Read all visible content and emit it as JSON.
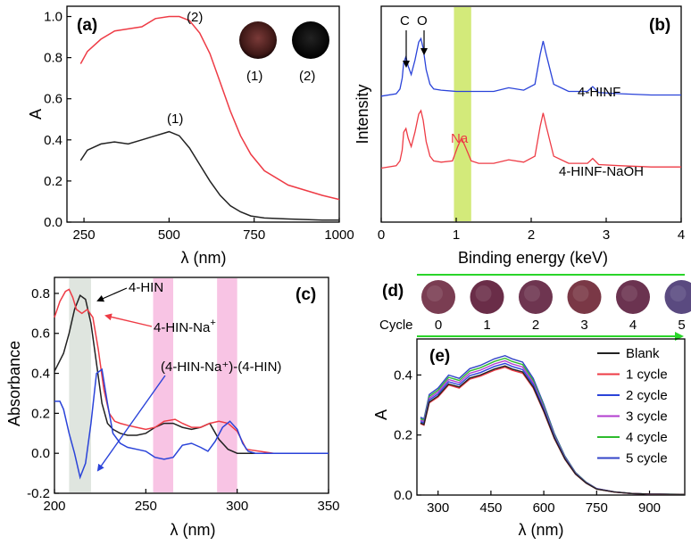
{
  "colors": {
    "black": "#222222",
    "red": "#ee3b45",
    "blue": "#2a43d9",
    "magenta": "#b23ccf",
    "green": "#2dbb2d",
    "navy": "#3344c8",
    "band_gray": "#dfe5df",
    "band_pink": "#f8c4e4",
    "band_yellow": "#d3ea7a",
    "arrow_green": "#2ad52a"
  },
  "chart_data": [
    {
      "panel": "(a)",
      "type": "line",
      "xlabel": "λ (nm)",
      "ylabel": "A",
      "xlim": [
        200,
        1000
      ],
      "ylim": [
        0,
        1.05
      ],
      "xticks": [
        "250",
        "500",
        "750",
        "1000"
      ],
      "yticks": [
        "0.0",
        "0.2",
        "0.4",
        "0.6",
        "0.8",
        "1.0"
      ],
      "curve_labels": [
        "(2)",
        "(1)"
      ],
      "inset_labels": [
        "(1)",
        "(2)"
      ],
      "series": [
        {
          "label": "(1)",
          "color": "#222222",
          "x": [
            240,
            260,
            300,
            340,
            380,
            420,
            460,
            500,
            530,
            560,
            590,
            620,
            650,
            680,
            710,
            740,
            780,
            850,
            950,
            1000
          ],
          "y": [
            0.3,
            0.35,
            0.38,
            0.39,
            0.38,
            0.4,
            0.42,
            0.44,
            0.42,
            0.36,
            0.28,
            0.2,
            0.13,
            0.08,
            0.05,
            0.03,
            0.02,
            0.015,
            0.01,
            0.01
          ]
        },
        {
          "label": "(2)",
          "color": "#ee3b45",
          "x": [
            240,
            260,
            300,
            340,
            380,
            420,
            460,
            500,
            530,
            560,
            590,
            620,
            650,
            680,
            710,
            740,
            780,
            850,
            950,
            1000
          ],
          "y": [
            0.77,
            0.83,
            0.89,
            0.93,
            0.94,
            0.95,
            0.99,
            1.0,
            1.0,
            0.98,
            0.92,
            0.82,
            0.68,
            0.54,
            0.42,
            0.33,
            0.25,
            0.18,
            0.13,
            0.11
          ]
        }
      ]
    },
    {
      "panel": "(b)",
      "type": "line",
      "xlabel": "Binding energy (keV)",
      "ylabel": "Intensity",
      "xlim": [
        0,
        4
      ],
      "xticks": [
        "0",
        "1",
        "2",
        "3",
        "4"
      ],
      "highlight_band": [
        0.97,
        1.2
      ],
      "peak_labels": [
        "C",
        "O",
        "Na"
      ],
      "series": [
        {
          "name": "4-HINF",
          "color": "#2a43d9",
          "offset": 0.6,
          "x": [
            0.0,
            0.2,
            0.25,
            0.28,
            0.3,
            0.33,
            0.36,
            0.4,
            0.45,
            0.5,
            0.53,
            0.56,
            0.6,
            0.65,
            0.7,
            0.8,
            1.0,
            1.2,
            1.5,
            1.7,
            1.9,
            2.05,
            2.12,
            2.16,
            2.2,
            2.3,
            2.5,
            2.75,
            2.82,
            2.9,
            3.2,
            3.6,
            4.0
          ],
          "y": [
            0.0,
            0.02,
            0.06,
            0.15,
            0.28,
            0.33,
            0.25,
            0.18,
            0.3,
            0.45,
            0.48,
            0.4,
            0.22,
            0.1,
            0.06,
            0.05,
            0.04,
            0.04,
            0.04,
            0.07,
            0.05,
            0.1,
            0.35,
            0.46,
            0.35,
            0.1,
            0.04,
            0.04,
            0.08,
            0.03,
            0.02,
            0.01,
            0.01
          ]
        },
        {
          "name": "4-HINF-NaOH",
          "color": "#ee3b45",
          "offset": 0.0,
          "x": [
            0.0,
            0.2,
            0.25,
            0.28,
            0.3,
            0.33,
            0.36,
            0.4,
            0.45,
            0.5,
            0.53,
            0.56,
            0.6,
            0.65,
            0.7,
            0.8,
            0.95,
            1.02,
            1.07,
            1.12,
            1.2,
            1.3,
            1.5,
            1.7,
            1.9,
            2.05,
            2.12,
            2.16,
            2.2,
            2.3,
            2.5,
            2.75,
            2.82,
            2.9,
            3.2,
            3.6,
            4.0
          ],
          "y": [
            0.0,
            0.02,
            0.06,
            0.15,
            0.3,
            0.33,
            0.25,
            0.18,
            0.3,
            0.45,
            0.48,
            0.4,
            0.22,
            0.1,
            0.06,
            0.05,
            0.06,
            0.18,
            0.25,
            0.18,
            0.06,
            0.04,
            0.04,
            0.07,
            0.05,
            0.1,
            0.35,
            0.46,
            0.35,
            0.1,
            0.04,
            0.04,
            0.08,
            0.03,
            0.02,
            0.01,
            0.01
          ]
        }
      ]
    },
    {
      "panel": "(c)",
      "type": "line",
      "xlabel": "λ (nm)",
      "ylabel": "Absorbance",
      "xlim": [
        200,
        350
      ],
      "ylim": [
        -0.2,
        0.88
      ],
      "xticks": [
        "200",
        "250",
        "300",
        "350"
      ],
      "yticks": [
        "-0.2",
        "0.0",
        "0.2",
        "0.4",
        "0.6",
        "0.8"
      ],
      "bands": [
        [
          208,
          220
        ],
        [
          254,
          265
        ],
        [
          289,
          300
        ]
      ],
      "series": [
        {
          "name": "4-HIN",
          "color": "#222222",
          "x": [
            200,
            205,
            208,
            211,
            214,
            217,
            220,
            223,
            226,
            229,
            232,
            236,
            240,
            245,
            250,
            255,
            260,
            265,
            270,
            275,
            280,
            285,
            290,
            295,
            300,
            320,
            350
          ],
          "y": [
            0.41,
            0.5,
            0.6,
            0.72,
            0.79,
            0.77,
            0.65,
            0.45,
            0.25,
            0.15,
            0.12,
            0.1,
            0.09,
            0.09,
            0.1,
            0.13,
            0.15,
            0.15,
            0.13,
            0.12,
            0.13,
            0.15,
            0.07,
            0.02,
            0.0,
            0.0,
            0.0
          ]
        },
        {
          "name": "4-HIN-Na⁺",
          "color": "#ee3b45",
          "x": [
            200,
            203,
            206,
            208,
            210,
            212,
            215,
            218,
            221,
            224,
            227,
            230,
            233,
            236,
            240,
            245,
            250,
            255,
            260,
            266,
            270,
            275,
            280,
            285,
            290,
            295,
            300,
            305,
            320,
            350
          ],
          "y": [
            0.68,
            0.76,
            0.81,
            0.82,
            0.78,
            0.72,
            0.7,
            0.72,
            0.68,
            0.52,
            0.32,
            0.2,
            0.16,
            0.15,
            0.14,
            0.13,
            0.12,
            0.13,
            0.16,
            0.17,
            0.15,
            0.13,
            0.13,
            0.15,
            0.16,
            0.15,
            0.11,
            0.02,
            0.0,
            0.0
          ]
        },
        {
          "name": "(4-HIN-Na⁺)-(4-HIN)",
          "color": "#2a43d9",
          "x": [
            200,
            203,
            205,
            208,
            211,
            214,
            217,
            220,
            223,
            226,
            229,
            232,
            236,
            240,
            245,
            250,
            255,
            260,
            265,
            270,
            275,
            280,
            284,
            288,
            292,
            296,
            300,
            303,
            306,
            310,
            320,
            350
          ],
          "y": [
            0.26,
            0.26,
            0.22,
            0.1,
            0.0,
            -0.12,
            -0.05,
            0.15,
            0.4,
            0.42,
            0.25,
            0.1,
            0.05,
            0.03,
            0.02,
            0.01,
            -0.02,
            -0.03,
            -0.02,
            0.04,
            0.05,
            0.03,
            0.01,
            0.06,
            0.13,
            0.16,
            0.12,
            0.05,
            0.01,
            0.0,
            0.0,
            0.0
          ]
        }
      ]
    },
    {
      "panel": "(d)",
      "type": "table",
      "row_label": "Cycle",
      "columns": [
        "0",
        "1",
        "2",
        "3",
        "4",
        "5"
      ]
    },
    {
      "panel": "(e)",
      "type": "line",
      "xlabel": "λ (nm)",
      "ylabel": "A",
      "xlim": [
        240,
        1000
      ],
      "ylim": [
        0,
        0.52
      ],
      "xticks": [
        "300",
        "450",
        "600",
        "750",
        "900"
      ],
      "yticks": [
        "0.0",
        "0.2",
        "0.4"
      ],
      "x": [
        250,
        260,
        275,
        300,
        330,
        360,
        390,
        420,
        460,
        490,
        510,
        540,
        570,
        600,
        630,
        660,
        690,
        720,
        750,
        800,
        850,
        900,
        1000
      ],
      "base": [
        0.24,
        0.235,
        0.31,
        0.33,
        0.37,
        0.36,
        0.39,
        0.4,
        0.42,
        0.43,
        0.42,
        0.41,
        0.36,
        0.28,
        0.19,
        0.12,
        0.07,
        0.04,
        0.02,
        0.01,
        0.005,
        0.003,
        0.002
      ],
      "series": [
        {
          "name": "Blank",
          "color": "#222222",
          "scale": 1.0
        },
        {
          "name": "1 cycle",
          "color": "#ee3b45",
          "scale": 0.99
        },
        {
          "name": "2 cycle",
          "color": "#2a43d9",
          "scale": 1.02
        },
        {
          "name": "3 cycle",
          "color": "#b23ccf",
          "scale": 1.04
        },
        {
          "name": "4 cycle",
          "color": "#2dbb2d",
          "scale": 1.06
        },
        {
          "name": "5 cycle",
          "color": "#3344c8",
          "scale": 1.08
        }
      ]
    }
  ],
  "labels": {
    "a": {
      "panel": "(a)",
      "c2": "(2)",
      "c1": "(1)",
      "in1": "(1)",
      "in2": "(2)"
    },
    "b": {
      "panel": "(b)",
      "c": "C",
      "o": "O",
      "na": "Na",
      "s1": "4-HINF",
      "s2": "4-HINF-NaOH"
    },
    "c": {
      "panel": "(c)",
      "s1": "4-HIN",
      "s2": "4-HIN-Na",
      "s2sup": "+",
      "s3": "(4-HIN-Na⁺)-(4-HIN)"
    },
    "d": {
      "panel": "(d)",
      "cycle": "Cycle"
    },
    "e": {
      "panel": "(e)"
    }
  }
}
